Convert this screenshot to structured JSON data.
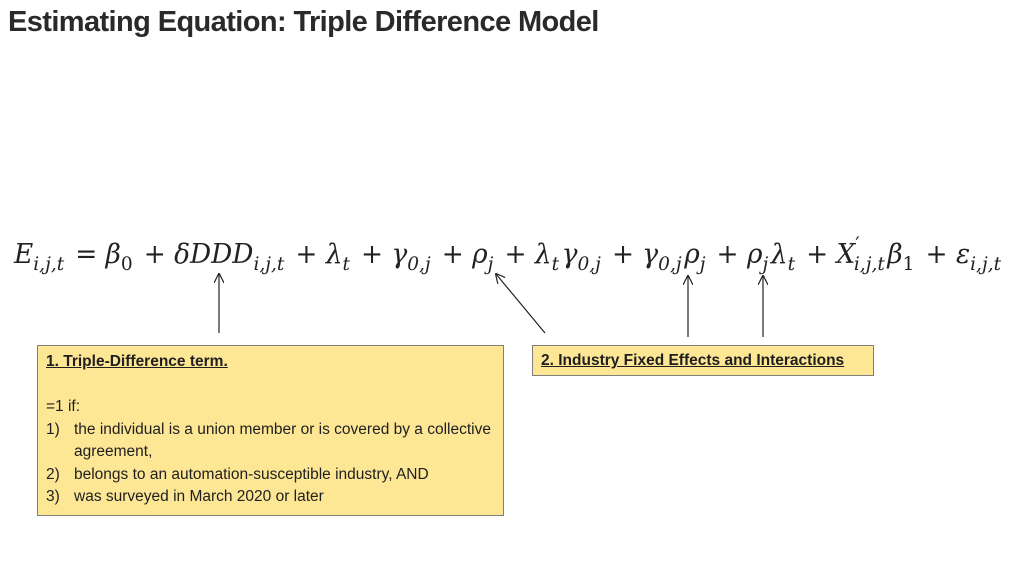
{
  "slide": {
    "title": "Estimating Equation: Triple Difference Model"
  },
  "equation": {
    "lhs": "E",
    "lhs_subscript": "i,j,t",
    "equals": "=",
    "plus": "+",
    "terms": [
      {
        "base": "β",
        "sub": "0"
      },
      {
        "base": "δDDD",
        "sub": "i,j,t"
      },
      {
        "base": "λ",
        "sub": "t"
      },
      {
        "base": "γ",
        "sub": "0,j"
      },
      {
        "base": "ρ",
        "sub": "j"
      },
      {
        "parts": [
          {
            "base": "λ",
            "sub": "t"
          },
          {
            "base": "γ",
            "sub": "0,j"
          }
        ]
      },
      {
        "parts": [
          {
            "base": "γ",
            "sub": "0,j"
          },
          {
            "base": "ρ",
            "sub": "j"
          }
        ]
      },
      {
        "parts": [
          {
            "base": "ρ",
            "sub": "j"
          },
          {
            "base": "λ",
            "sub": "t"
          }
        ]
      },
      {
        "parts": [
          {
            "base": "X",
            "sup": "′",
            "sub": "i,j,t"
          },
          {
            "base": "β",
            "sub": "1"
          }
        ]
      },
      {
        "base": "ε",
        "sub": "i,j,t"
      }
    ]
  },
  "callouts": [
    {
      "heading": "1. Triple-Difference term.",
      "intro": "=1 if:",
      "conditions": [
        {
          "num": "1)",
          "text": "the individual is a union member or is covered by a collective agreement,"
        },
        {
          "num": "2)",
          "text": "belongs to an automation-susceptible industry, AND"
        },
        {
          "num": "3)",
          "text": "was surveyed in March 2020 or later"
        }
      ]
    },
    {
      "heading": "2. Industry Fixed Effects and Interactions"
    }
  ],
  "colors": {
    "callout_fill": "#fde694",
    "callout_border": "#7f7f7f",
    "text": "#222222"
  }
}
